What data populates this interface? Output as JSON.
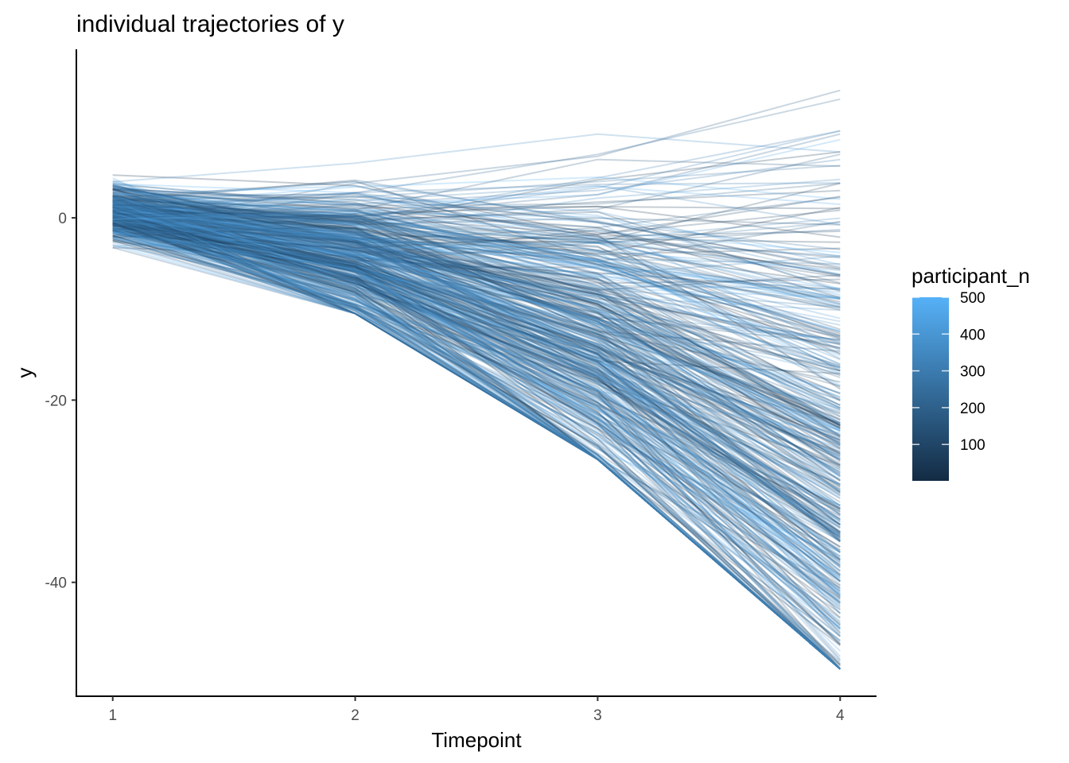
{
  "chart_data": {
    "type": "line",
    "title": "individual trajectories of y",
    "xlabel": "Timepoint",
    "ylabel": "y",
    "x": [
      1,
      2,
      3,
      4
    ],
    "x_ticks": [
      "1",
      "2",
      "3",
      "4"
    ],
    "y_ticks": [
      0,
      -20,
      -40
    ],
    "y_tick_labels": [
      "0",
      "-20",
      "-40"
    ],
    "xlim": [
      0.85,
      4.15
    ],
    "ylim": [
      -52.5,
      18.5
    ],
    "n_participants": 500,
    "line_opacity": 0.25,
    "grid": false,
    "legend": {
      "title": "participant_n",
      "placement": "right",
      "type": "colorbar",
      "range": [
        1,
        500
      ],
      "ticks": [
        100,
        200,
        300,
        400,
        500
      ],
      "tick_labels": [
        "100",
        "200",
        "300",
        "400",
        "500"
      ],
      "color_low": "#132B43",
      "color_high": "#56B1F7"
    },
    "summary": {
      "mean": [
        -0.3,
        -3.8,
        -10.5,
        -18.0
      ],
      "min": [
        -3.5,
        -10.5,
        -26.5,
        -49.5
      ],
      "max": [
        5.0,
        6.0,
        11.0,
        15.5
      ]
    }
  }
}
